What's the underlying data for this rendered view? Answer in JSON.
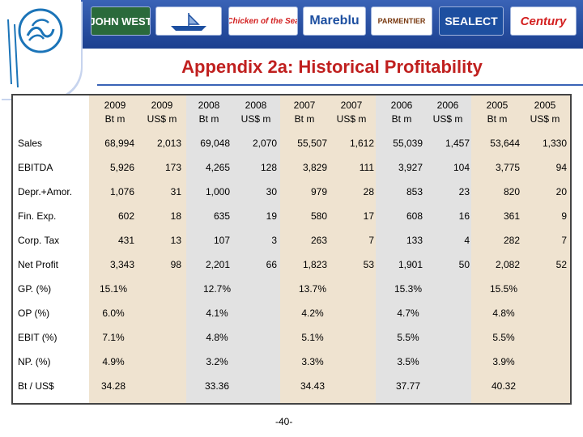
{
  "brands": [
    {
      "name": "JOHN WEST",
      "color": "#1d4fa0"
    },
    {
      "name": "",
      "color": "#1d4fa0"
    },
    {
      "name": "Chicken of the Sea",
      "color": "#d32020"
    },
    {
      "name": "Mareblu",
      "color": "#1d4fa0"
    },
    {
      "name": "PARMENTIER",
      "color": "#7a3b12"
    },
    {
      "name": "SEALECT",
      "color": "#d32020"
    },
    {
      "name": "Century",
      "color": "#d32020"
    }
  ],
  "title": "Appendix 2a: Historical Profitability",
  "columns": [
    {
      "year": "2009",
      "unit": "Bt m"
    },
    {
      "year": "2009",
      "unit": "US$ m"
    },
    {
      "year": "2008",
      "unit": "Bt m"
    },
    {
      "year": "2008",
      "unit": "US$ m"
    },
    {
      "year": "2007",
      "unit": "Bt m"
    },
    {
      "year": "2007",
      "unit": "US$ m"
    },
    {
      "year": "2006",
      "unit": "Bt m"
    },
    {
      "year": "2006",
      "unit": "US$ m"
    },
    {
      "year": "2005",
      "unit": "Bt m"
    },
    {
      "year": "2005",
      "unit": "US$ m"
    }
  ],
  "rows": [
    {
      "label": "Sales",
      "values": [
        "68,994",
        "2,013",
        "69,048",
        "2,070",
        "55,507",
        "1,612",
        "55,039",
        "1,457",
        "53,644",
        "1,330"
      ]
    },
    {
      "label": "EBITDA",
      "values": [
        "5,926",
        "173",
        "4,265",
        "128",
        "3,829",
        "111",
        "3,927",
        "104",
        "3,775",
        "94"
      ]
    },
    {
      "label": "Depr.+Amor.",
      "values": [
        "1,076",
        "31",
        "1,000",
        "30",
        "979",
        "28",
        "853",
        "23",
        "820",
        "20"
      ]
    },
    {
      "label": "Fin. Exp.",
      "values": [
        "602",
        "18",
        "635",
        "19",
        "580",
        "17",
        "608",
        "16",
        "361",
        "9"
      ]
    },
    {
      "label": "Corp. Tax",
      "values": [
        "431",
        "13",
        "107",
        "3",
        "263",
        "7",
        "133",
        "4",
        "282",
        "7"
      ]
    },
    {
      "label": "Net Profit",
      "values": [
        "3,343",
        "98",
        "2,201",
        "66",
        "1,823",
        "53",
        "1,901",
        "50",
        "2,082",
        "52"
      ]
    }
  ],
  "ratios": [
    {
      "label": "GP. (%)",
      "values": [
        "15.1%",
        "12.7%",
        "13.7%",
        "15.3%",
        "15.5%"
      ]
    },
    {
      "label": "OP (%)",
      "values": [
        "6.0%",
        "4.1%",
        "4.2%",
        "4.7%",
        "4.8%"
      ]
    },
    {
      "label": "EBIT (%)",
      "values": [
        "7.1%",
        "4.8%",
        "5.1%",
        "5.5%",
        "5.5%"
      ]
    },
    {
      "label": "NP. (%)",
      "values": [
        "4.9%",
        "3.2%",
        "3.3%",
        "3.5%",
        "3.9%"
      ]
    },
    {
      "label": "Bt / US$",
      "values": [
        "34.28",
        "33.36",
        "34.43",
        "37.77",
        "40.32"
      ]
    }
  ],
  "page_number": "-40-",
  "colors": {
    "header_blue": "#2a4f9f",
    "title_red": "#c0201f",
    "table_gray": "#e2e2e2",
    "table_tan": "#efe3d0"
  }
}
